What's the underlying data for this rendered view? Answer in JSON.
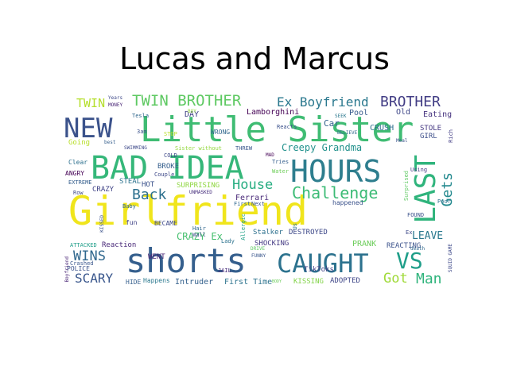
{
  "title": "Lucas and Marcus",
  "colors": {
    "background": "#ffffff",
    "palette_yellow": "#f4e51c",
    "palette_green": "#2fb47c",
    "palette_teal": "#20908d",
    "palette_blue": "#355f8d",
    "palette_purple": "#482475"
  },
  "words": [
    {
      "text": "Girlfriend",
      "color": "#f0e51c"
    },
    {
      "text": "Little Sister",
      "color": "#3fbc73"
    },
    {
      "text": "shorts",
      "color": "#355f8d"
    },
    {
      "text": "BAD IDEA",
      "color": "#35b779"
    },
    {
      "text": "HOURS",
      "color": "#2e7e8e"
    },
    {
      "text": "NEW",
      "color": "#3b528b"
    },
    {
      "text": "CAUGHT",
      "color": "#2c728e"
    },
    {
      "text": "LAST",
      "color": "#2fb47c"
    },
    {
      "text": "VS",
      "color": "#1f9e89"
    },
    {
      "text": "Challenge",
      "color": "#3bbb75"
    },
    {
      "text": "TWIN BROTHER",
      "color": "#5ec962"
    },
    {
      "text": "Ex Boyfriend",
      "color": "#2a788e"
    },
    {
      "text": "BROTHER",
      "color": "#433e85"
    },
    {
      "text": "House",
      "color": "#27ad81"
    },
    {
      "text": "Back",
      "color": "#2d708e"
    },
    {
      "text": "Gets",
      "color": "#23898e"
    },
    {
      "text": "WINS",
      "color": "#31688e"
    },
    {
      "text": "SCARY",
      "color": "#39568c"
    },
    {
      "text": "Man",
      "color": "#2fb47c"
    },
    {
      "text": "Got",
      "color": "#a0da39"
    },
    {
      "text": "LEAVE",
      "color": "#2a788e"
    },
    {
      "text": "TWIN",
      "color": "#b5de2b"
    },
    {
      "text": "Creepy Grandma",
      "color": "#21918c"
    },
    {
      "text": "Lamborghini",
      "color": "#440154"
    },
    {
      "text": "CRAZY Ex",
      "color": "#46c06f"
    },
    {
      "text": "Ferrari",
      "color": "#482878"
    },
    {
      "text": "DESTROYED",
      "color": "#3e4989"
    },
    {
      "text": "SHOCKING",
      "color": "#443a83"
    },
    {
      "text": "KISSING",
      "color": "#84d44b"
    },
    {
      "text": "ADOPTED",
      "color": "#3f4788"
    },
    {
      "text": "First Time",
      "color": "#2c738e"
    },
    {
      "text": "Intruder",
      "color": "#34618d"
    },
    {
      "text": "PRANK",
      "color": "#6ccd5a"
    },
    {
      "text": "REACTING",
      "color": "#3b528b"
    },
    {
      "text": "TikToks",
      "color": "#424086"
    },
    {
      "text": "Stalker",
      "color": "#2d708e"
    },
    {
      "text": "Car",
      "color": "#33638d"
    },
    {
      "text": "Pool",
      "color": "#375a8c"
    },
    {
      "text": "CRUSH",
      "color": "#2e6f8e"
    },
    {
      "text": "STOLE",
      "color": "#453882"
    },
    {
      "text": "GIRL",
      "color": "#3d4e8a"
    },
    {
      "text": "Eating",
      "color": "#46337f"
    },
    {
      "text": "Old",
      "color": "#3f4788"
    },
    {
      "text": "DAY",
      "color": "#414287"
    },
    {
      "text": "WRONG",
      "color": "#31688e"
    },
    {
      "text": "BROKE",
      "color": "#355f8d"
    },
    {
      "text": "HOT",
      "color": "#3b528b"
    },
    {
      "text": "CRAZY",
      "color": "#414487"
    },
    {
      "text": "SURPRISING",
      "color": "#90d743"
    },
    {
      "text": "STEAL",
      "color": "#2c728e"
    },
    {
      "text": "UNMASKED",
      "color": "#472f7d"
    },
    {
      "text": "BECAME",
      "color": "#3e4a89"
    },
    {
      "text": "WENT",
      "color": "#482475"
    },
    {
      "text": "Going",
      "color": "#b8de29"
    },
    {
      "text": "POLICE",
      "color": "#3b528b"
    },
    {
      "text": "ANGRY",
      "color": "#440154"
    },
    {
      "text": "EXTREME",
      "color": "#355f8d"
    },
    {
      "text": "Clear",
      "color": "#2d708e"
    },
    {
      "text": "Row",
      "color": "#3e4989"
    },
    {
      "text": "ATTACKED",
      "color": "#1f9e89"
    },
    {
      "text": "Reaction",
      "color": "#482878"
    },
    {
      "text": "Crashed",
      "color": "#39568c"
    },
    {
      "text": "HIDE",
      "color": "#355f8d"
    },
    {
      "text": "Happens",
      "color": "#2a788e"
    },
    {
      "text": "Couple",
      "color": "#3e4989"
    },
    {
      "text": "JAIL",
      "color": "#472a7a"
    },
    {
      "text": "Hair",
      "color": "#31688e"
    },
    {
      "text": "Wall",
      "color": "#3e4a89"
    },
    {
      "text": "Lady",
      "color": "#2c728e"
    },
    {
      "text": "FUNNY",
      "color": "#39568c"
    },
    {
      "text": "Reacts",
      "color": "#3b528b"
    },
    {
      "text": "Tries",
      "color": "#355f8d"
    },
    {
      "text": "Water",
      "color": "#6ece58"
    },
    {
      "text": "Using",
      "color": "#443983"
    },
    {
      "text": "FOUND",
      "color": "#3b528b"
    },
    {
      "text": "Poor",
      "color": "#2d708e"
    },
    {
      "text": "Surprised",
      "color": "#5ec962"
    },
    {
      "text": "BELIEVE",
      "color": "#31688e"
    },
    {
      "text": "happened",
      "color": "#3b528b"
    },
    {
      "text": "SWIMMING",
      "color": "#3e4989"
    },
    {
      "text": "Sister without",
      "color": "#95d840"
    },
    {
      "text": "THREW",
      "color": "#39568c"
    },
    {
      "text": "STOP",
      "color": "#b8de29"
    },
    {
      "text": "SEEK",
      "color": "#2a788e"
    },
    {
      "text": "Tesla",
      "color": "#31688e"
    },
    {
      "text": "Years",
      "color": "#3e4989"
    },
    {
      "text": "MONEY",
      "color": "#482475"
    },
    {
      "text": "best",
      "color": "#355f8d"
    },
    {
      "text": "3am",
      "color": "#3b528b"
    },
    {
      "text": "COLD",
      "color": "#3e4989"
    },
    {
      "text": "Baby",
      "color": "#31688e"
    },
    {
      "text": "fun",
      "color": "#414487"
    },
    {
      "text": "Meal",
      "color": "#3b528b"
    },
    {
      "text": "Rich",
      "color": "#433e85"
    },
    {
      "text": "SQUID GAME",
      "color": "#3e4989"
    },
    {
      "text": "Boyfriend",
      "color": "#482475"
    },
    {
      "text": "Next",
      "color": "#3b528b"
    },
    {
      "text": "First",
      "color": "#31688e"
    },
    {
      "text": "Us",
      "color": "#2c728e"
    },
    {
      "text": "DRIVE",
      "color": "#5ec962"
    },
    {
      "text": "BODY",
      "color": "#6ccd5a"
    },
    {
      "text": "KISSED",
      "color": "#3b528b"
    },
    {
      "text": "Allergic",
      "color": "#1fa187"
    },
    {
      "text": "MAD",
      "color": "#440154"
    },
    {
      "text": "Ex",
      "color": "#3e4989"
    },
    {
      "text": "death",
      "color": "#31688e"
    },
    {
      "text": "BOY",
      "color": "#95d840"
    }
  ]
}
